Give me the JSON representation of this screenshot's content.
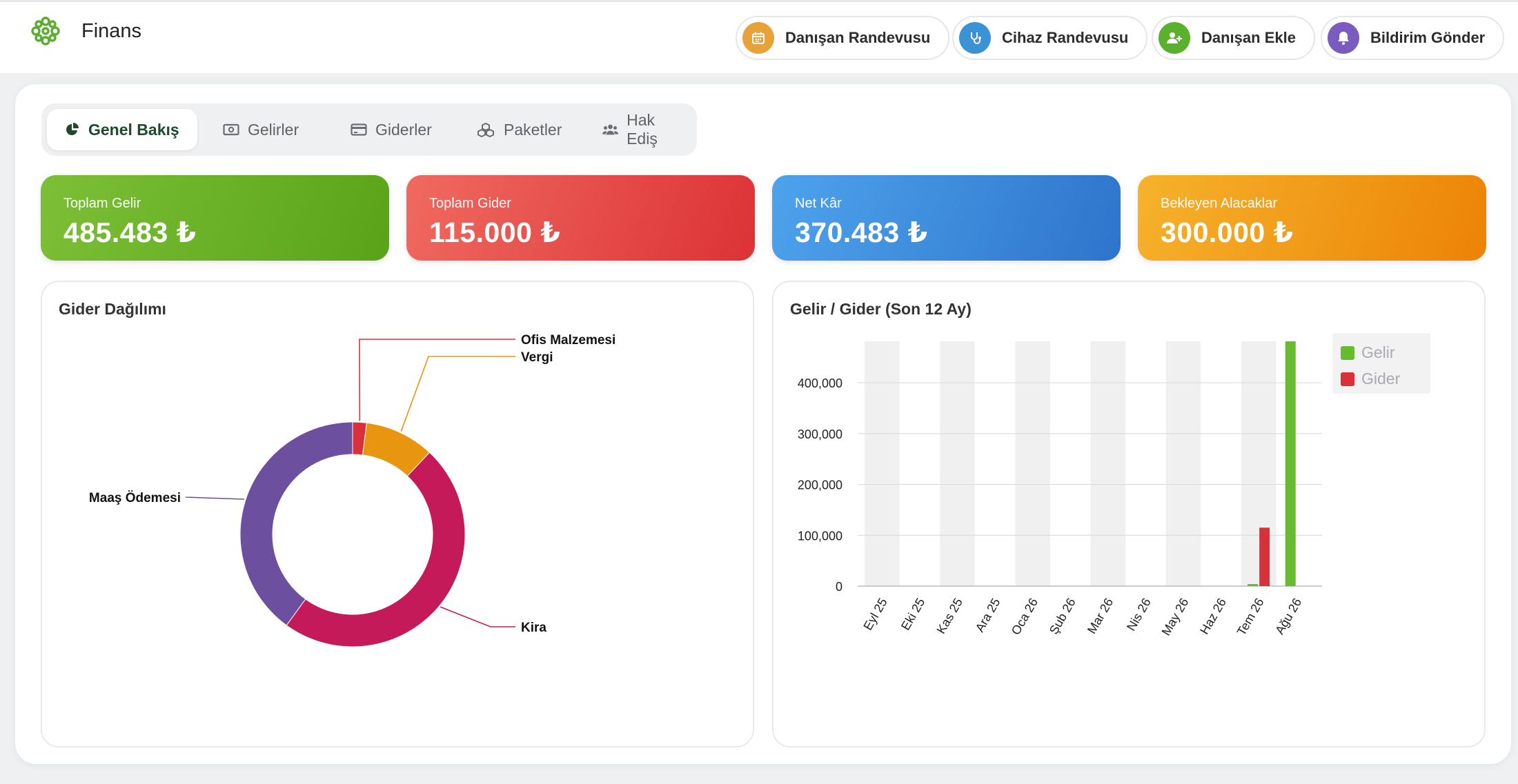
{
  "header": {
    "title": "Finans",
    "logo_icon": "flower-logo-icon"
  },
  "quick_actions": [
    {
      "label": "Danışan Randevusu",
      "icon": "calendar-icon",
      "color": "#e8a23a"
    },
    {
      "label": "Cihaz Randevusu",
      "icon": "stethoscope-icon",
      "color": "#3b93d6"
    },
    {
      "label": "Danışan Ekle",
      "icon": "user-plus-icon",
      "color": "#5ab12d"
    },
    {
      "label": "Bildirim Gönder",
      "icon": "bell-icon",
      "color": "#7a5bbf"
    }
  ],
  "tabs": [
    {
      "label": "Genel Bakış",
      "icon": "pie-chart-icon",
      "active": true
    },
    {
      "label": "Gelirler",
      "icon": "money-bill-icon",
      "active": false
    },
    {
      "label": "Giderler",
      "icon": "credit-card-icon",
      "active": false
    },
    {
      "label": "Paketler",
      "icon": "cubes-icon",
      "active": false
    },
    {
      "label": "Hak Ediş",
      "icon": "users-icon",
      "active": false
    }
  ],
  "stats": [
    {
      "label": "Toplam Gelir",
      "value": "485.483 ₺",
      "color": "#5eb02a"
    },
    {
      "label": "Toplam Gider",
      "value": "115.000 ₺",
      "color": "#e0393a"
    },
    {
      "label": "Net Kâr",
      "value": "370.483 ₺",
      "color": "#3a8ee0"
    },
    {
      "label": "Bekleyen Alacaklar",
      "value": "300.000 ₺",
      "color": "#f09a16"
    }
  ],
  "panels": {
    "expense_title": "Gider Dağılımı",
    "income_expense_title": "Gelir / Gider (Son 12 Ay)"
  },
  "chart_data": [
    {
      "type": "pie",
      "title": "Gider Dağılımı",
      "donut": true,
      "slices": [
        {
          "label": "Ofis Malzemesi",
          "value": 2.0,
          "color": "#d8313a"
        },
        {
          "label": "Vergi",
          "value": 10.0,
          "color": "#e8950f"
        },
        {
          "label": "Kira",
          "value": 48.0,
          "color": "#c51a5a"
        },
        {
          "label": "Maaş Ödemesi",
          "value": 40.0,
          "color": "#6d4fa0"
        }
      ]
    },
    {
      "type": "bar",
      "title": "Gelir / Gider (Son 12 Ay)",
      "categories": [
        "Eyl 25",
        "Eki 25",
        "Kas 25",
        "Ara 25",
        "Oca 26",
        "Şub 26",
        "Mar 26",
        "Nis 26",
        "May 26",
        "Haz 26",
        "Tem 26",
        "Ağu 26"
      ],
      "series": [
        {
          "name": "Gelir",
          "color": "#66bb2e",
          "values": [
            0,
            0,
            0,
            0,
            0,
            0,
            0,
            0,
            0,
            0,
            4000,
            481483
          ]
        },
        {
          "name": "Gider",
          "color": "#d9303a",
          "values": [
            0,
            0,
            0,
            0,
            0,
            0,
            0,
            0,
            0,
            0,
            115000,
            0
          ]
        }
      ],
      "yticks": [
        0,
        100000,
        200000,
        300000,
        400000
      ],
      "ytick_labels": [
        "0",
        "100,000",
        "200,000",
        "300,000",
        "400,000"
      ],
      "ylim": [
        0,
        481483
      ],
      "grid": true,
      "legend": "top-right"
    }
  ]
}
